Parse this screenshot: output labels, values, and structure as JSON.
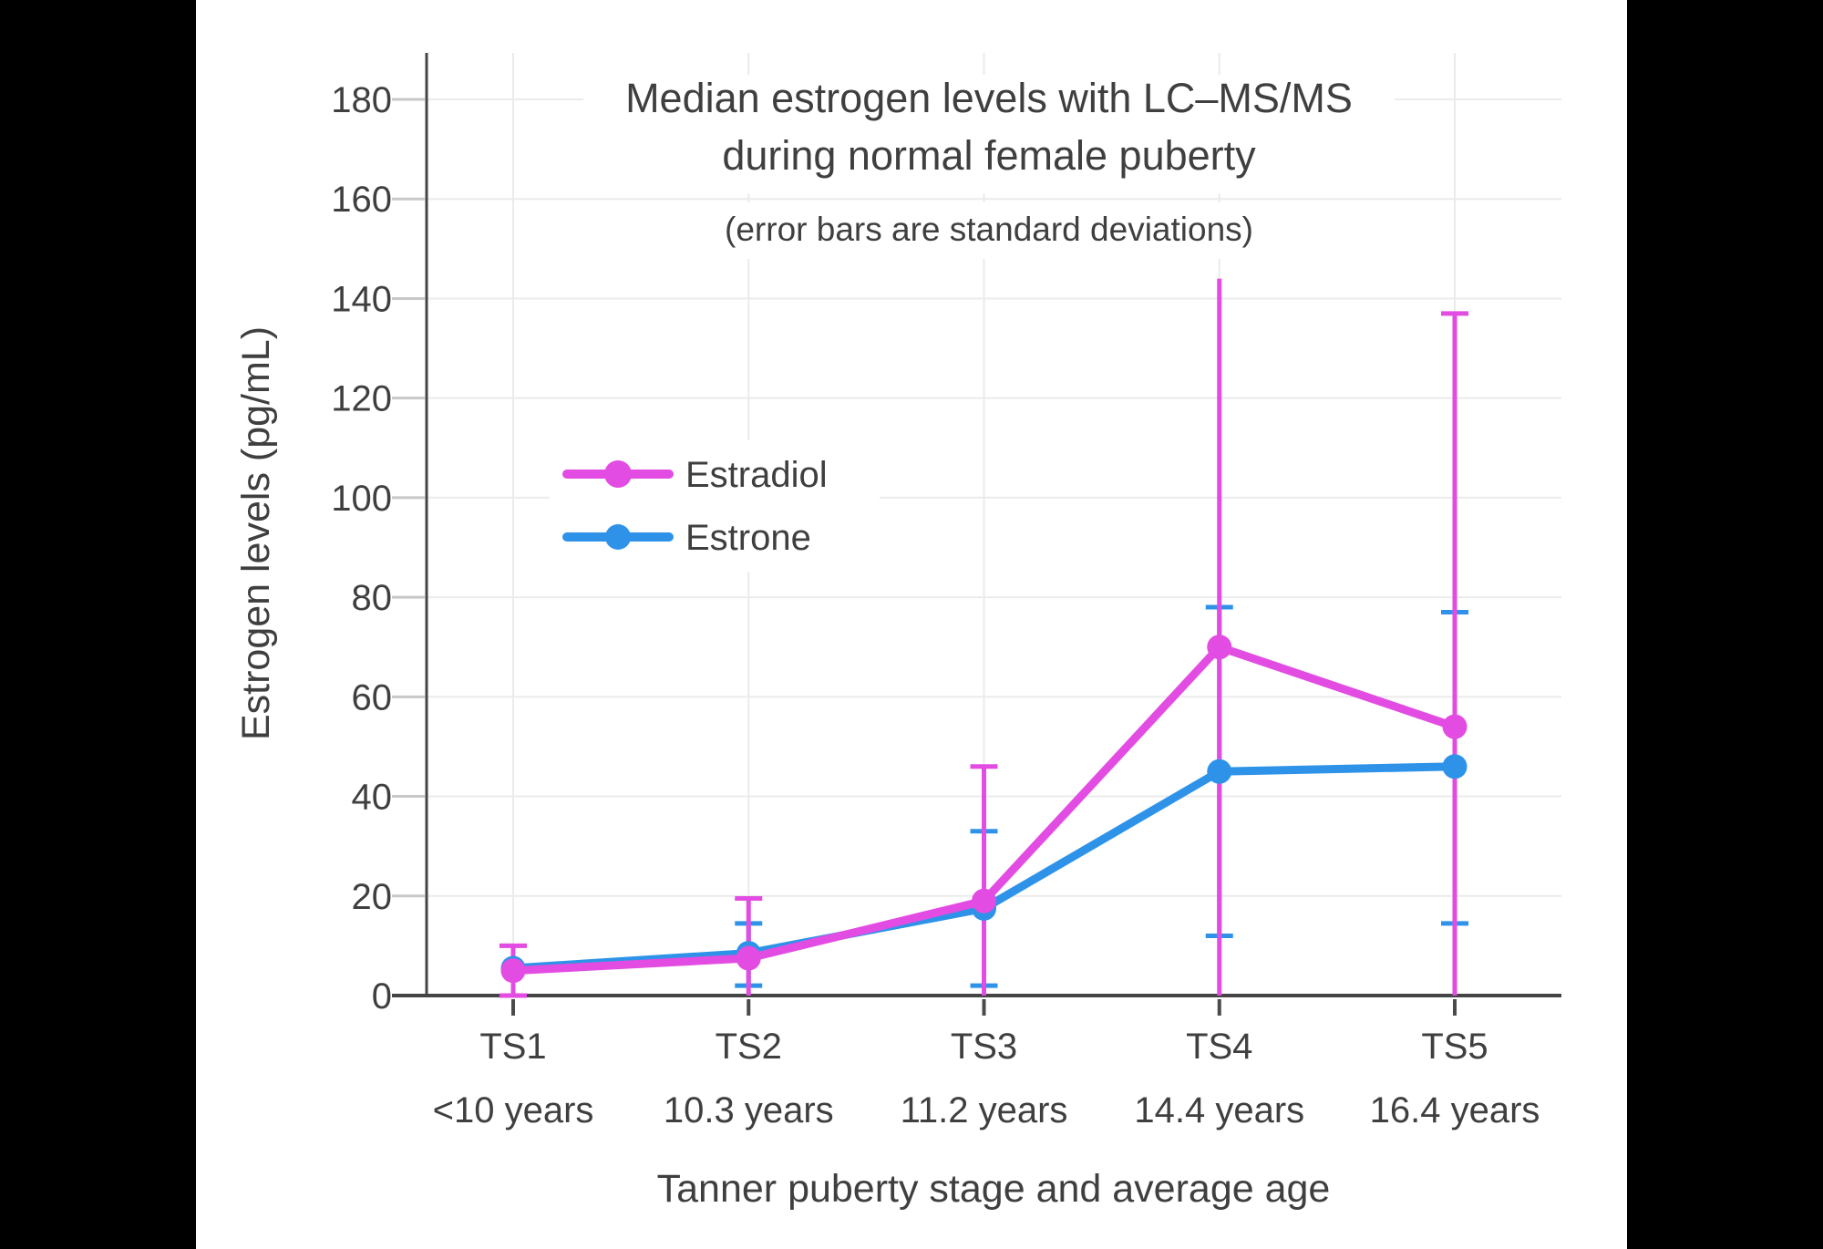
{
  "window": {
    "background": "#000000",
    "canvas_background": "#FFFFFF"
  },
  "chart_data": {
    "type": "line",
    "title_line1": "Median estrogen levels with LC–MS/MS",
    "title_line2": "during normal female puberty",
    "subtitle": "(error bars are standard deviations)",
    "xlabel": "Tanner puberty stage and average age",
    "ylabel": "Estrogen levels (pg/mL)",
    "grid": true,
    "legend_position": "inside-left",
    "colors": {
      "text": "#3F3F3F",
      "grid": "#EBEBEB",
      "axis": "#444444",
      "y_tick": "#C8C8C8",
      "x_tick": "#4A4A4A"
    },
    "y_axis": {
      "min": 0,
      "max": 190,
      "tick_step": 20,
      "ticks": [
        0,
        20,
        40,
        60,
        80,
        100,
        120,
        140,
        160,
        180
      ]
    },
    "categories": [
      {
        "stage": "TS1",
        "age": "<10 years"
      },
      {
        "stage": "TS2",
        "age": "10.3 years"
      },
      {
        "stage": "TS3",
        "age": "11.2 years"
      },
      {
        "stage": "TS4",
        "age": "14.4 years"
      },
      {
        "stage": "TS5",
        "age": "16.4 years"
      }
    ],
    "series": [
      {
        "name": "Estradiol",
        "color": "#E24CE2",
        "values": [
          5,
          7.5,
          19,
          70,
          54
        ],
        "err_upper": [
          10,
          19.5,
          46,
          144,
          137
        ],
        "err_lower": [
          0,
          0,
          0,
          0,
          0
        ],
        "cap_upper": [
          true,
          true,
          true,
          false,
          true
        ],
        "cap_lower": [
          true,
          false,
          false,
          false,
          false
        ]
      },
      {
        "name": "Estrone",
        "color": "#2E93E8",
        "values": [
          5.5,
          8.5,
          17.5,
          45,
          46
        ],
        "err_upper": [
          null,
          14.5,
          33,
          78,
          77
        ],
        "err_lower": [
          null,
          2,
          2,
          12,
          14.5
        ],
        "cap_upper": [
          false,
          true,
          true,
          true,
          true
        ],
        "cap_lower": [
          false,
          true,
          true,
          true,
          true
        ]
      }
    ]
  }
}
